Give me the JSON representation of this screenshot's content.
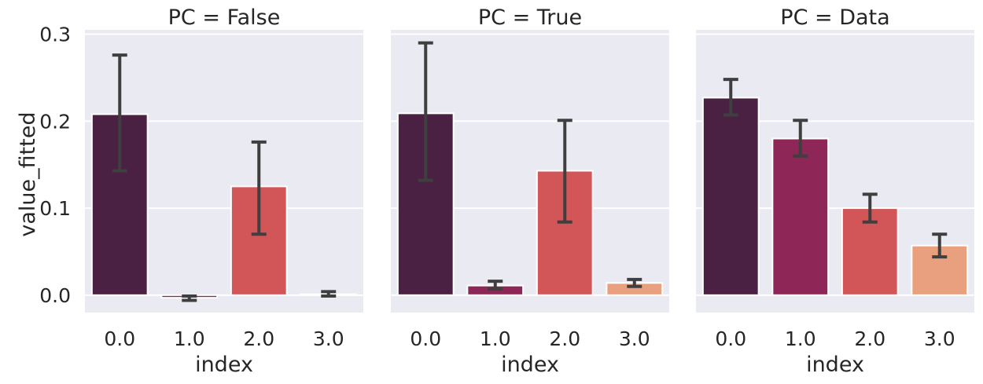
{
  "chart_data": {
    "type": "bar",
    "ylabel": "value_fitted",
    "xlabel": "index",
    "ylim": [
      -0.02,
      0.305
    ],
    "yticks": [
      "0.0",
      "0.1",
      "0.2",
      "0.3"
    ],
    "ytick_values": [
      0.0,
      0.1,
      0.2,
      0.3
    ],
    "categories": [
      "0.0",
      "1.0",
      "2.0",
      "3.0"
    ],
    "colors": [
      "#4a2142",
      "#8e2757",
      "#d25557",
      "#e8a07e"
    ],
    "grid": true,
    "background": "#eaeaf2",
    "error_bar_color": "#3f3f3f",
    "panels": [
      {
        "title": "PC = False",
        "xlabel": "index",
        "values": [
          0.208,
          -0.003,
          0.125,
          0.001
        ],
        "err_low": [
          0.143,
          -0.006,
          0.07,
          -0.001
        ],
        "err_high": [
          0.276,
          -0.001,
          0.176,
          0.004
        ]
      },
      {
        "title": "PC = True",
        "xlabel": "index",
        "values": [
          0.209,
          0.011,
          0.143,
          0.014
        ],
        "err_low": [
          0.132,
          0.007,
          0.084,
          0.01
        ],
        "err_high": [
          0.29,
          0.016,
          0.201,
          0.018
        ]
      },
      {
        "title": "PC = Data",
        "xlabel": "index",
        "values": [
          0.227,
          0.18,
          0.1,
          0.057
        ],
        "err_low": [
          0.207,
          0.16,
          0.084,
          0.044
        ],
        "err_high": [
          0.248,
          0.201,
          0.116,
          0.07
        ]
      }
    ]
  }
}
